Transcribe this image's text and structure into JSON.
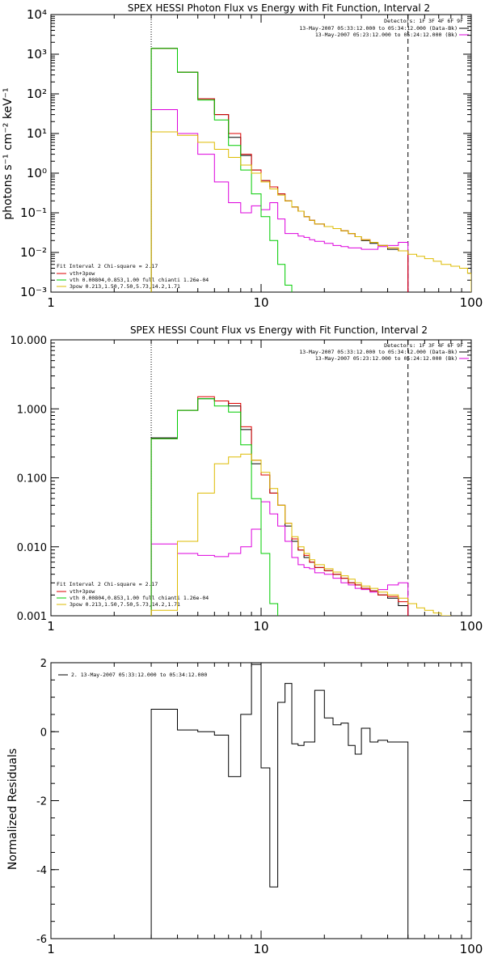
{
  "chart_data": [
    {
      "type": "line",
      "scale": "log-log",
      "title": "SPEX HESSI Photon Flux vs Energy with Fit Function, Interval 2",
      "ylabel": "photons s⁻¹ cm⁻² keV⁻¹",
      "xlabel": "",
      "xlim": [
        1,
        100
      ],
      "ylim": [
        0.001,
        10000
      ],
      "xticks": [
        1,
        10,
        100
      ],
      "xtick_labels": [
        "1",
        "10",
        "100"
      ],
      "yticks": [
        0.001,
        0.01,
        0.1,
        1,
        10,
        100,
        1000,
        10000
      ],
      "ytick_labels": [
        "10⁻³",
        "10⁻²",
        "10⁻¹",
        "10⁰",
        "10¹",
        "10²",
        "10³",
        "10⁴"
      ],
      "vlines": [
        {
          "x": 3,
          "style": "dotted"
        },
        {
          "x": 50,
          "style": "dashed"
        }
      ],
      "legend_top": [
        "Detectors: 1F 3F 4F 6F 9F",
        "13-May-2007 05:33:12.000 to 05:34:12.000 (Data-Bk)",
        "13-May-2007 05:23:12.000 to 05:24:12.000 (Bk)"
      ],
      "legend_bottom": [
        "Fit Interval  2   Chi-square = 2.17",
        "vth+3pow",
        "vth 0.00804,0.853,1.00  full chianti 1.26e-04",
        "3pow 0.213,1.50,7.50,5.73,14.2,1.71"
      ],
      "colors": {
        "data": "#000000",
        "bk": "#dd00dd",
        "vth+3pow": "#dd0000",
        "vth": "#00cc00",
        "3pow": "#ddbb00"
      },
      "series": [
        {
          "name": "Data-Bk",
          "color": "#000000",
          "edges": [
            3,
            4,
            5,
            6,
            7,
            8,
            9,
            10,
            11,
            12,
            13,
            14,
            15,
            16,
            17,
            18,
            20,
            22,
            24,
            26,
            28,
            30,
            33,
            36,
            40,
            45,
            50
          ],
          "values": [
            1400,
            350,
            75,
            30,
            8,
            2.8,
            1.2,
            0.65,
            0.45,
            0.3,
            0.2,
            0.14,
            0.11,
            0.08,
            0.065,
            0.052,
            0.045,
            0.04,
            0.035,
            0.03,
            0.025,
            0.02,
            0.017,
            0.015,
            0.012,
            0.011
          ]
        },
        {
          "name": "Bk",
          "color": "#dd00dd",
          "edges": [
            3,
            4,
            5,
            6,
            7,
            8,
            9,
            10,
            11,
            12,
            13,
            14,
            15,
            16,
            17,
            18,
            20,
            22,
            24,
            26,
            28,
            30,
            33,
            36,
            40,
            45,
            50
          ],
          "values": [
            40,
            10,
            3,
            0.6,
            0.18,
            0.1,
            0.15,
            0.12,
            0.18,
            0.07,
            0.03,
            0.03,
            0.026,
            0.024,
            0.021,
            0.019,
            0.017,
            0.015,
            0.014,
            0.013,
            0.013,
            0.012,
            0.012,
            0.014,
            0.015,
            0.018
          ]
        },
        {
          "name": "vth+3pow",
          "color": "#dd0000",
          "edges": [
            3,
            4,
            5,
            6,
            7,
            8,
            9,
            10,
            11,
            12,
            13,
            14,
            15,
            16,
            17,
            18,
            20,
            22,
            24,
            26,
            28,
            30,
            33,
            36,
            40,
            45,
            50
          ],
          "values": [
            1400,
            350,
            75,
            30,
            10,
            3,
            1.2,
            0.65,
            0.45,
            0.3,
            0.2,
            0.14,
            0.11,
            0.08,
            0.065,
            0.052,
            0.045,
            0.04,
            0.035,
            0.03,
            0.025,
            0.021,
            0.018,
            0.015,
            0.013,
            0.011
          ]
        },
        {
          "name": "vth",
          "color": "#00cc00",
          "edges": [
            3,
            4,
            5,
            6,
            7,
            8,
            9,
            10,
            11,
            12,
            13,
            14
          ],
          "values": [
            1400,
            350,
            70,
            22,
            5,
            1.2,
            0.3,
            0.08,
            0.02,
            0.005,
            0.0015
          ]
        },
        {
          "name": "3pow",
          "color": "#ddbb00",
          "edges": [
            3,
            4,
            5,
            6,
            7,
            8,
            9,
            10,
            11,
            12,
            13,
            14,
            15,
            16,
            17,
            18,
            20,
            22,
            24,
            26,
            28,
            30,
            33,
            36,
            40,
            45,
            50,
            55,
            60,
            66,
            72,
            80,
            88,
            96,
            100
          ],
          "values": [
            11,
            9,
            6,
            4,
            2.5,
            1.6,
            1,
            0.6,
            0.4,
            0.28,
            0.2,
            0.14,
            0.11,
            0.08,
            0.065,
            0.052,
            0.045,
            0.04,
            0.035,
            0.03,
            0.025,
            0.021,
            0.018,
            0.015,
            0.013,
            0.011,
            0.009,
            0.008,
            0.007,
            0.006,
            0.005,
            0.0045,
            0.004,
            0.003
          ]
        }
      ]
    },
    {
      "type": "line",
      "scale": "log-log",
      "title": "SPEX HESSI Count Flux vs Energy with Fit Function, Interval 2",
      "ylabel": "",
      "xlabel": "",
      "xlim": [
        1,
        100
      ],
      "ylim": [
        0.001,
        10
      ],
      "xticks": [
        1,
        10,
        100
      ],
      "xtick_labels": [
        "1",
        "10",
        "100"
      ],
      "yticks": [
        0.001,
        0.01,
        0.1,
        1,
        10
      ],
      "ytick_labels": [
        "0.001",
        "0.010",
        "0.100",
        "1.000",
        "10.000"
      ],
      "vlines": [
        {
          "x": 3,
          "style": "dotted"
        },
        {
          "x": 50,
          "style": "dashed"
        }
      ],
      "legend_top": [
        "Detectors: 1F 3F 4F 6F 9F",
        "13-May-2007 05:33:12.000 to 05:34:12.000 (Data-Bk)",
        "13-May-2007 05:23:12.000 to 05:24:12.000 (Bk)"
      ],
      "legend_bottom": [
        "Fit Interval  2   Chi-square = 2.17",
        "vth+3pow",
        "vth 0.00804,0.853,1.00  full chianti 1.26e-04",
        "3pow 0.213,1.50,7.50,5.73,14.2,1.71"
      ],
      "series": [
        {
          "name": "Data-Bk",
          "color": "#000000",
          "edges": [
            3,
            4,
            5,
            6,
            7,
            8,
            9,
            10,
            11,
            12,
            13,
            14,
            15,
            16,
            17,
            18,
            20,
            22,
            24,
            26,
            28,
            30,
            33,
            36,
            40,
            45,
            50
          ],
          "values": [
            0.38,
            0.95,
            1.4,
            1.3,
            1.1,
            0.5,
            0.16,
            0.11,
            0.06,
            0.04,
            0.02,
            0.012,
            0.009,
            0.007,
            0.006,
            0.005,
            0.0045,
            0.004,
            0.0035,
            0.003,
            0.0028,
            0.0025,
            0.0023,
            0.002,
            0.0018,
            0.0014
          ]
        },
        {
          "name": "Bk",
          "color": "#dd00dd",
          "edges": [
            3,
            4,
            5,
            6,
            7,
            8,
            9,
            10,
            11,
            12,
            13,
            14,
            15,
            16,
            17,
            18,
            20,
            22,
            24,
            26,
            28,
            30,
            33,
            36,
            40,
            45,
            50
          ],
          "values": [
            0.011,
            0.008,
            0.0075,
            0.0072,
            0.008,
            0.01,
            0.018,
            0.045,
            0.03,
            0.02,
            0.012,
            0.007,
            0.0055,
            0.005,
            0.0048,
            0.0042,
            0.004,
            0.0035,
            0.003,
            0.0028,
            0.0025,
            0.0024,
            0.0022,
            0.0024,
            0.0028,
            0.003
          ]
        },
        {
          "name": "vth+3pow",
          "color": "#dd0000",
          "edges": [
            3,
            4,
            5,
            6,
            7,
            8,
            9,
            10,
            11,
            12,
            13,
            14,
            15,
            16,
            17,
            18,
            20,
            22,
            24,
            26,
            28,
            30,
            33,
            36,
            40,
            45,
            50
          ],
          "values": [
            0.37,
            0.95,
            1.5,
            1.3,
            1.2,
            0.55,
            0.18,
            0.11,
            0.06,
            0.04,
            0.022,
            0.013,
            0.009,
            0.0075,
            0.006,
            0.005,
            0.0045,
            0.004,
            0.0035,
            0.003,
            0.0028,
            0.0025,
            0.0023,
            0.002,
            0.0019,
            0.0016
          ]
        },
        {
          "name": "vth",
          "color": "#00cc00",
          "edges": [
            3,
            4,
            5,
            6,
            7,
            8,
            9,
            10,
            11,
            12
          ],
          "values": [
            0.37,
            0.95,
            1.4,
            1.1,
            0.9,
            0.3,
            0.05,
            0.008,
            0.0015
          ]
        },
        {
          "name": "3pow",
          "color": "#ddbb00",
          "edges": [
            3,
            4,
            5,
            6,
            7,
            8,
            9,
            10,
            11,
            12,
            13,
            14,
            15,
            16,
            17,
            18,
            20,
            22,
            24,
            26,
            28,
            30,
            33,
            36,
            40,
            45,
            50,
            55,
            60,
            66,
            72,
            80
          ],
          "values": [
            0.0012,
            0.012,
            0.06,
            0.16,
            0.2,
            0.22,
            0.18,
            0.12,
            0.07,
            0.04,
            0.022,
            0.014,
            0.01,
            0.008,
            0.0065,
            0.0055,
            0.0048,
            0.0043,
            0.0038,
            0.0034,
            0.003,
            0.0027,
            0.0025,
            0.0022,
            0.002,
            0.0018,
            0.0015,
            0.0013,
            0.0012,
            0.0011,
            0.001
          ]
        }
      ]
    },
    {
      "type": "line",
      "scale": "log-x",
      "title": "",
      "ylabel": "Normalized Residuals",
      "xlabel": "",
      "xlim": [
        1,
        100
      ],
      "ylim": [
        -6,
        2
      ],
      "xticks": [
        1,
        10,
        100
      ],
      "xtick_labels": [
        "1",
        "10",
        "100"
      ],
      "yticks": [
        -6,
        -4,
        -2,
        0,
        2
      ],
      "ytick_labels": [
        "-6",
        "-4",
        "-2",
        "0",
        "2"
      ],
      "legend": "2. 13-May-2007 05:33:12.000 to 05:34:12.000",
      "series": [
        {
          "name": "2. 13-May-2007 05:33:12.000 to 05:34:12.000",
          "color": "#000000",
          "edges": [
            3,
            4,
            5,
            6,
            7,
            8,
            9,
            10,
            11,
            12,
            13,
            14,
            15,
            16,
            17,
            18,
            20,
            22,
            24,
            26,
            28,
            30,
            33,
            36,
            40,
            45,
            50
          ],
          "values": [
            0.65,
            0.05,
            0.0,
            -0.1,
            -1.3,
            0.5,
            1.95,
            -1.05,
            -4.5,
            0.85,
            1.4,
            -0.35,
            -0.4,
            -0.3,
            -0.3,
            1.2,
            0.4,
            0.2,
            0.25,
            -0.4,
            -0.65,
            0.1,
            -0.3,
            -0.25,
            -0.3,
            -0.3
          ]
        }
      ]
    }
  ]
}
